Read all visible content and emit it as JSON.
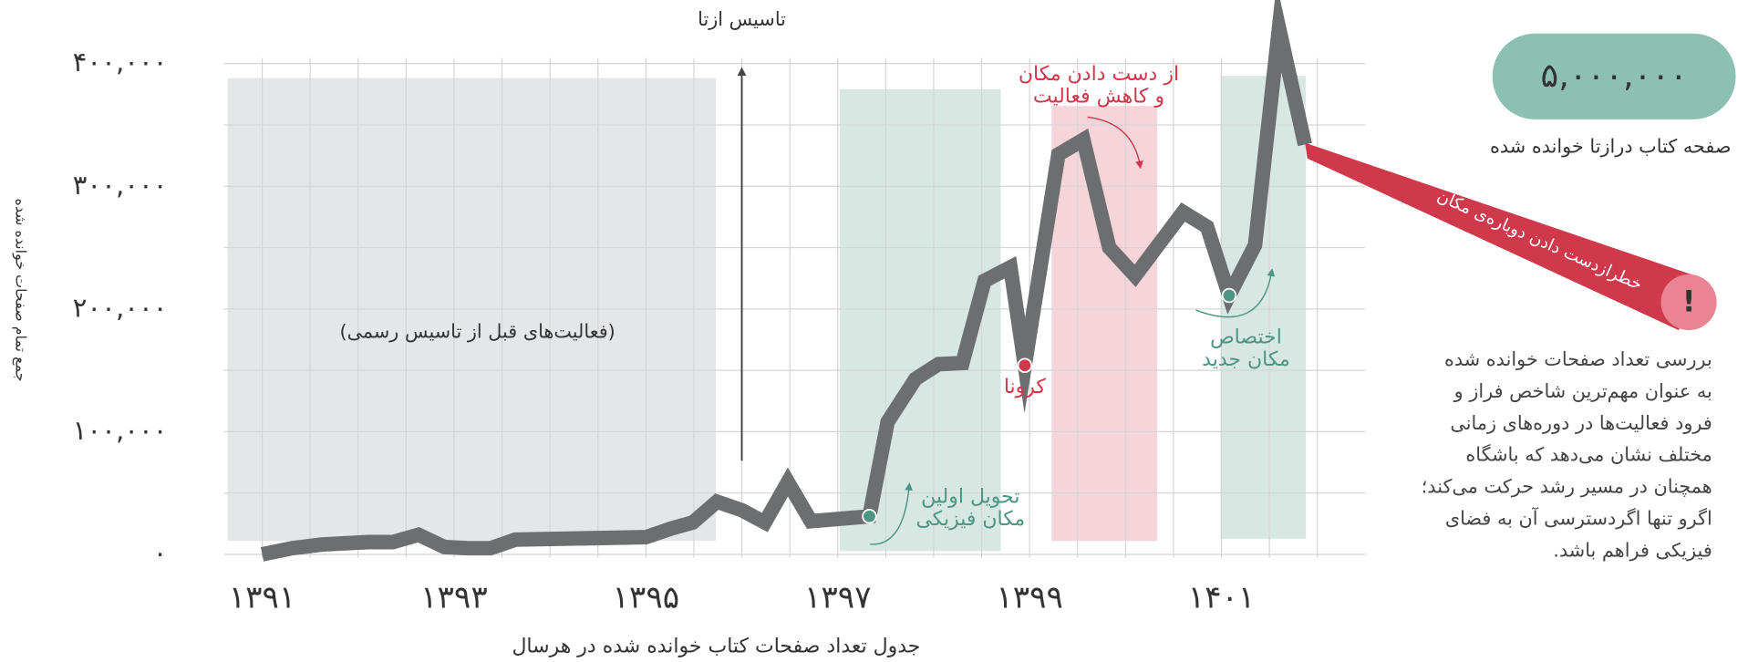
{
  "chart_data": {
    "type": "line",
    "y_label": "جمع تمام صفحات خوانده شده",
    "x_label": "جدول تعداد صفحات کتاب خوانده شده در هرسال",
    "x": [
      1391,
      1391.31,
      1391.62,
      1392.1,
      1392.36,
      1392.63,
      1392.9,
      1393.15,
      1393.38,
      1393.64,
      1395,
      1395.26,
      1395.49,
      1395.74,
      1396,
      1396.24,
      1396.48,
      1396.72,
      1397.33,
      1397.52,
      1397.81,
      1398.05,
      1398.3,
      1398.53,
      1398.8,
      1398.95,
      1399.3,
      1399.56,
      1399.83,
      1400.1,
      1400.6,
      1400.85,
      1401.08,
      1401.35,
      1401.6,
      1401.87
    ],
    "values": [
      0,
      5000,
      8000,
      10000,
      10000,
      16000,
      6000,
      5000,
      5000,
      12000,
      14000,
      21000,
      26000,
      43000,
      36000,
      26000,
      59000,
      27000,
      31000,
      108000,
      143000,
      155000,
      156000,
      223000,
      234000,
      154000,
      326000,
      338000,
      250000,
      227000,
      279000,
      267000,
      211000,
      252000,
      429000,
      334000
    ],
    "color": "#6d6e70",
    "xlim": [
      1390.6,
      1402.5
    ],
    "ylim": [
      0,
      400000
    ],
    "xticks": [
      {
        "value": 1391,
        "label": "۱۳۹۱"
      },
      {
        "value": 1393,
        "label": "۱۳۹۳"
      },
      {
        "value": 1395,
        "label": "۱۳۹۵"
      },
      {
        "value": 1397,
        "label": "۱۳۹۷"
      },
      {
        "value": 1399,
        "label": "۱۳۹۹"
      },
      {
        "value": 1401,
        "label": "۱۴۰۱"
      }
    ],
    "yticks": [
      {
        "value": 0,
        "label": "۰"
      },
      {
        "value": 100000,
        "label": "۱۰۰,۰۰۰"
      },
      {
        "value": 200000,
        "label": "۲۰۰,۰۰۰"
      },
      {
        "value": 300000,
        "label": "۳۰۰,۰۰۰"
      },
      {
        "value": 400000,
        "label": "۴۰۰,۰۰۰"
      }
    ],
    "xminorticks": [
      1391.5,
      1392,
      1392.5,
      1393.5,
      1394,
      1394.5,
      1395.5,
      1396,
      1396.5,
      1397.5,
      1398,
      1398.5,
      1399.5,
      1400,
      1400.5,
      1401.5,
      1402
    ],
    "yminorticks": [
      50000,
      150000,
      250000,
      350000
    ],
    "grid": true,
    "bands": [
      {
        "from": 1390.64,
        "to": 1395.73,
        "color": "#e5e6e8",
        "text_color": "#333333",
        "label": [
          "(فعالیت‌های قبل از تاسیس رسمی)"
        ]
      },
      {
        "from": 1397.02,
        "to": 1398.7,
        "color": "#d7e8e3",
        "text_color": "#4e9683",
        "label": [
          "تحویل اولین",
          "مکان فیزیکی"
        ]
      },
      {
        "from": 1399.23,
        "to": 1400.33,
        "color": "#f5d5da",
        "text_color": "#d0384c",
        "label": [
          "از دست دادن مکان",
          "و کاهش فعالیت"
        ]
      },
      {
        "from": 1400.99,
        "to": 1401.88,
        "color": "#d7e8e3",
        "text_color": "#4e9683",
        "label": [
          "اختصاص",
          "مکان جدید"
        ]
      }
    ],
    "founding": {
      "x": 1396,
      "label": "تاسیس ازتا"
    },
    "callout": {
      "label": "کرونا",
      "color": "#d0384c"
    }
  },
  "summary": {
    "total": "۵,۰۰۰,۰۰۰",
    "caption": "صفحه کتاب درازتا خوانده شده",
    "warning": "خطرازدست دادن دوباره‌ی مکان",
    "warning_icon": "!",
    "paragraph": [
      "بررسی تعداد صفحات خوانده شده",
      "به عنوان مهم‌ترین شاخص فراز و",
      "فرود فعالیت‌ها در دوره‌های زمانی",
      "مختلف نشان می‌دهد که باشگاه",
      "همچنان در مسیر رشد حرکت می‌کند؛",
      "اگرو تنها اگردسترسی آن به فضای",
      "فیزیکی فراهم باشد."
    ]
  }
}
